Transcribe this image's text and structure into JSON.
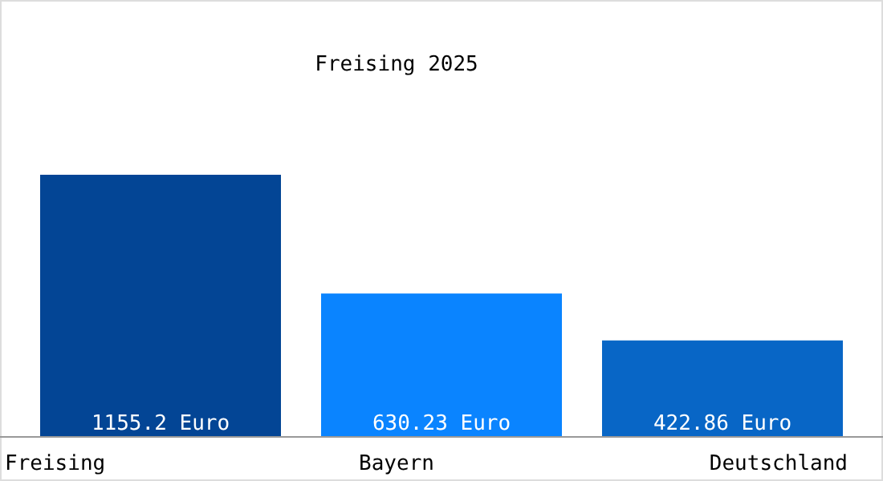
{
  "chart_data": {
    "type": "bar",
    "title": "Freising 2025",
    "categories": [
      "Freising",
      "Bayern",
      "Deutschland"
    ],
    "values": [
      1155.2,
      630.23,
      422.86
    ],
    "colors": [
      "#034595",
      "#0a84ff",
      "#0866c6"
    ],
    "value_labels": [
      "1155.2 Euro",
      "630.23 Euro",
      "422.86 Euro"
    ]
  }
}
